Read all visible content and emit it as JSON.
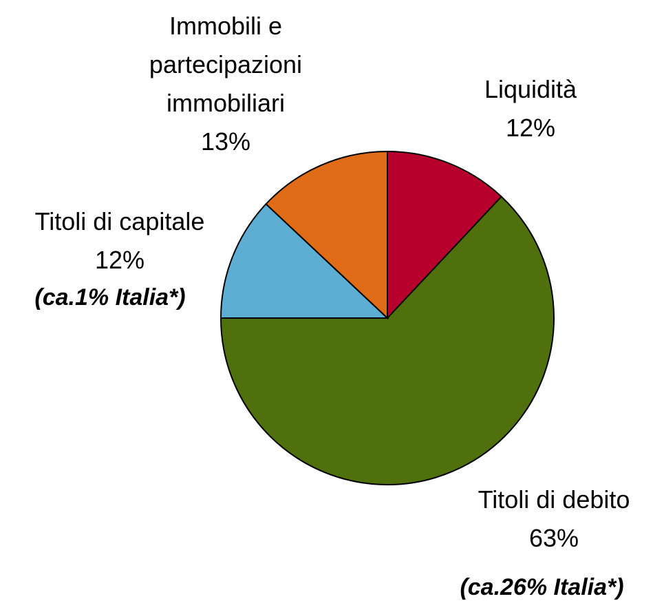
{
  "chart_data": {
    "type": "pie",
    "categories": [
      "Liquidità",
      "Titoli di debito",
      "Titoli di capitale",
      "Immobili e partecipazioni immobiliari"
    ],
    "values": [
      12,
      63,
      12,
      13
    ],
    "value_labels": [
      "12%",
      "63%",
      "12%",
      "13%"
    ],
    "colors": [
      "#b8002f",
      "#4f700c",
      "#5eaed4",
      "#e06c18"
    ],
    "annotations": [
      {
        "category": "Titoli di capitale",
        "text": "(ca.1% Italia*)"
      },
      {
        "category": "Titoli di debito",
        "text": "(ca.26% Italia*)"
      }
    ]
  }
}
